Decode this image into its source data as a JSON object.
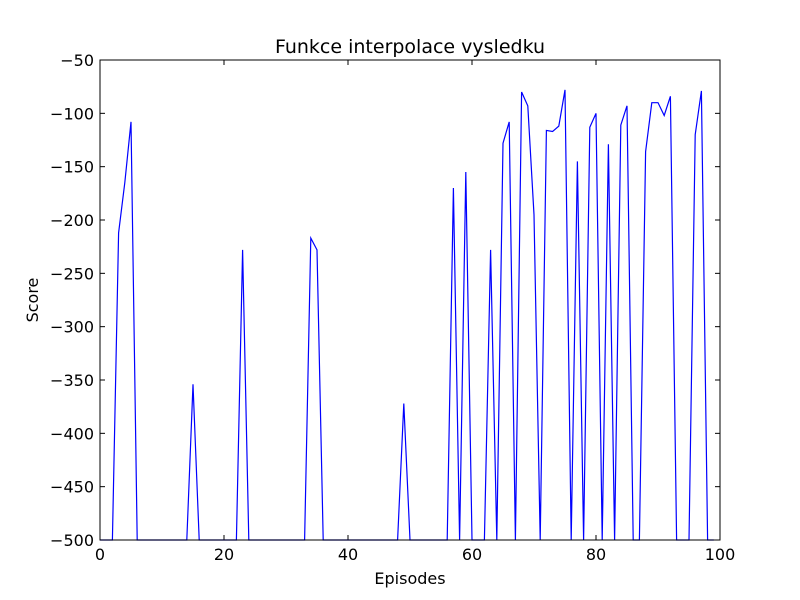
{
  "chart_data": {
    "type": "line",
    "title": "Funkce interpolace vysledku",
    "xlabel": "Episodes",
    "ylabel": "Score",
    "xlim": [
      0,
      100
    ],
    "ylim": [
      -500,
      -50
    ],
    "x_ticks": [
      0,
      20,
      40,
      60,
      80,
      100
    ],
    "y_ticks": [
      -500,
      -450,
      -400,
      -350,
      -300,
      -250,
      -200,
      -150,
      -100,
      -50
    ],
    "x_tick_labels": [
      "0",
      "20",
      "40",
      "60",
      "80",
      "100"
    ],
    "y_tick_labels": [
      "−500",
      "−450",
      "−400",
      "−350",
      "−300",
      "−250",
      "−200",
      "−150",
      "−100",
      "−50"
    ],
    "grid": false,
    "series": [
      {
        "color": "#0000ff",
        "x": [
          0,
          1,
          2,
          3,
          4,
          5,
          6,
          7,
          8,
          9,
          10,
          11,
          12,
          13,
          14,
          15,
          16,
          17,
          18,
          19,
          20,
          21,
          22,
          23,
          24,
          25,
          26,
          27,
          28,
          29,
          30,
          31,
          32,
          33,
          34,
          35,
          36,
          37,
          38,
          39,
          40,
          41,
          42,
          43,
          44,
          45,
          46,
          47,
          48,
          49,
          50,
          51,
          52,
          53,
          54,
          55,
          56,
          57,
          58,
          59,
          60,
          61,
          62,
          63,
          64,
          65,
          66,
          67,
          68,
          69,
          70,
          71,
          72,
          73,
          74,
          75,
          76,
          77,
          78,
          79,
          80,
          81,
          82,
          83,
          84,
          85,
          86,
          87,
          88,
          89,
          90,
          91,
          92,
          93,
          94,
          95,
          96,
          97,
          98,
          99
        ],
        "y": [
          -500,
          -500,
          -500,
          -212,
          -165,
          -108,
          -500,
          -500,
          -500,
          -500,
          -500,
          -500,
          -500,
          -500,
          -500,
          -354,
          -500,
          -500,
          -500,
          -500,
          -500,
          -500,
          -500,
          -228,
          -500,
          -500,
          -500,
          -500,
          -500,
          -500,
          -500,
          -500,
          -500,
          -500,
          -217,
          -228,
          -500,
          -500,
          -500,
          -500,
          -500,
          -500,
          -500,
          -500,
          -500,
          -500,
          -500,
          -500,
          -500,
          -372,
          -500,
          -500,
          -500,
          -500,
          -500,
          -500,
          -500,
          -170,
          -500,
          -155,
          -500,
          -500,
          -500,
          -228,
          -500,
          -128,
          -108,
          -500,
          -80,
          -93,
          -195,
          -500,
          -116,
          -117,
          -112,
          -78,
          -500,
          -145,
          -500,
          -113,
          -100,
          -500,
          -129,
          -500,
          -111,
          -93,
          -500,
          -500,
          -136,
          -90,
          -90,
          -102,
          -84,
          -500,
          -500,
          -500,
          -120,
          -79,
          -500,
          -500
        ]
      }
    ]
  }
}
